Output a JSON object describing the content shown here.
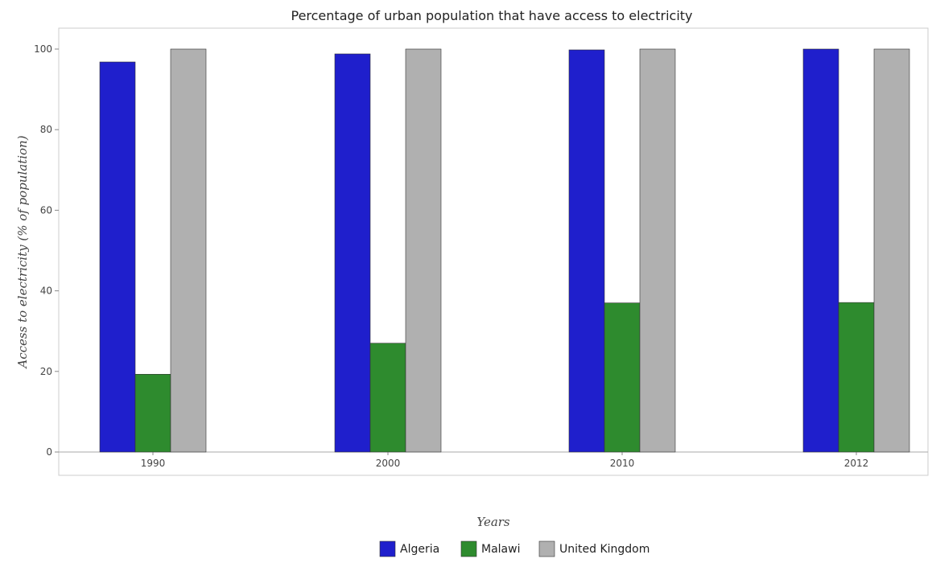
{
  "chart_data": {
    "type": "bar",
    "title": "Percentage of urban population that have access to electricity",
    "xlabel": "Years",
    "ylabel": "Access to electricity (% of population)",
    "categories": [
      "1990",
      "2000",
      "2010",
      "2012"
    ],
    "ylim": [
      0,
      105
    ],
    "yticks": [
      0,
      20,
      40,
      60,
      80,
      100
    ],
    "grid": false,
    "legend_position": "bottom-center",
    "series": [
      {
        "name": "Algeria",
        "color": "#1f1fcc",
        "values": [
          96.8,
          98.8,
          99.8,
          100
        ]
      },
      {
        "name": "Malawi",
        "color": "#2e8b2e",
        "values": [
          19.3,
          27.0,
          37.0,
          37.1
        ]
      },
      {
        "name": "United Kingdom",
        "color": "#b0b0b0",
        "values": [
          100,
          100,
          100,
          100
        ]
      }
    ]
  }
}
